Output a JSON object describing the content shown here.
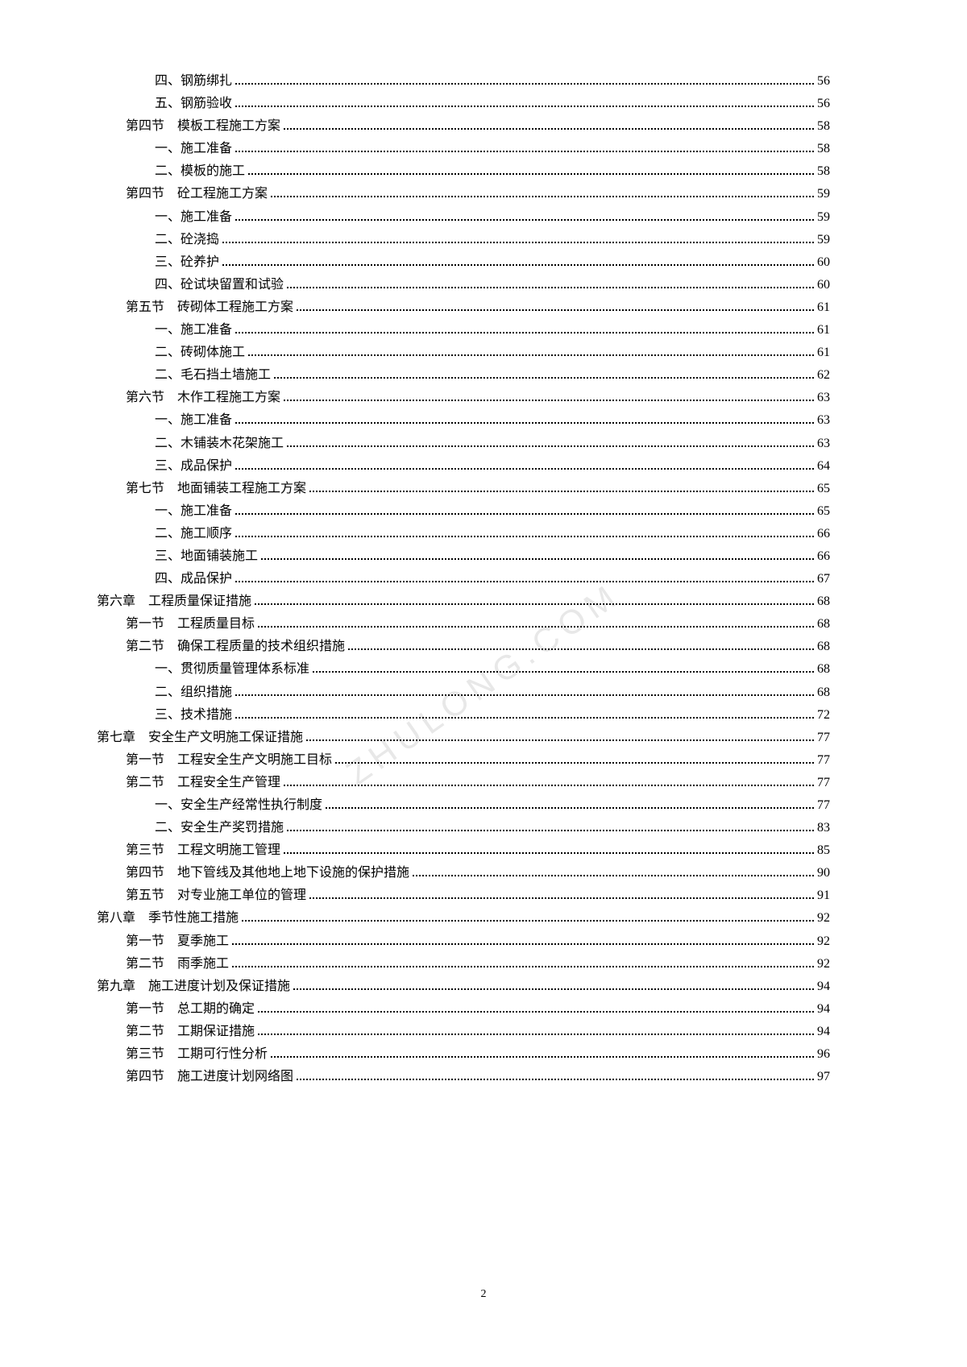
{
  "watermark_text": "ZHULONG.COM",
  "page_number": "2",
  "toc_entries": [
    {
      "indent": 2,
      "label": "四、钢筋绑扎",
      "page": "56"
    },
    {
      "indent": 2,
      "label": "五、钢筋验收",
      "page": "56"
    },
    {
      "indent": 1,
      "label": "第四节　模板工程施工方案",
      "page": "58"
    },
    {
      "indent": 2,
      "label": "一、施工准备",
      "page": "58"
    },
    {
      "indent": 2,
      "label": "二、模板的施工",
      "page": "58"
    },
    {
      "indent": 1,
      "label": "第四节　砼工程施工方案",
      "page": "59"
    },
    {
      "indent": 2,
      "label": "一、施工准备",
      "page": "59"
    },
    {
      "indent": 2,
      "label": "二、砼浇捣",
      "page": "59"
    },
    {
      "indent": 2,
      "label": "三、砼养护",
      "page": "60"
    },
    {
      "indent": 2,
      "label": "四、砼试块留置和试验",
      "page": "60"
    },
    {
      "indent": 1,
      "label": "第五节　砖砌体工程施工方案",
      "page": "61"
    },
    {
      "indent": 2,
      "label": "一、施工准备",
      "page": "61"
    },
    {
      "indent": 2,
      "label": "二、砖砌体施工",
      "page": "61"
    },
    {
      "indent": 2,
      "label": "二、毛石挡土墙施工",
      "page": "62"
    },
    {
      "indent": 1,
      "label": "第六节　木作工程施工方案",
      "page": "63"
    },
    {
      "indent": 2,
      "label": "一、施工准备",
      "page": "63"
    },
    {
      "indent": 2,
      "label": "二、木铺装木花架施工",
      "page": "63"
    },
    {
      "indent": 2,
      "label": "三、成品保护",
      "page": "64"
    },
    {
      "indent": 1,
      "label": "第七节　地面铺装工程施工方案",
      "page": "65"
    },
    {
      "indent": 2,
      "label": "一、施工准备",
      "page": "65"
    },
    {
      "indent": 2,
      "label": "二、施工顺序",
      "page": "66"
    },
    {
      "indent": 2,
      "label": "三、地面铺装施工",
      "page": "66"
    },
    {
      "indent": 2,
      "label": "四、成品保护",
      "page": "67"
    },
    {
      "indent": 0,
      "label": "第六章　工程质量保证措施",
      "page": "68"
    },
    {
      "indent": 1,
      "label": "第一节　工程质量目标",
      "page": "68"
    },
    {
      "indent": 1,
      "label": "第二节　确保工程质量的技术组织措施",
      "page": "68"
    },
    {
      "indent": 2,
      "label": "一、贯彻质量管理体系标准",
      "page": "68"
    },
    {
      "indent": 2,
      "label": "二、组织措施",
      "page": "68"
    },
    {
      "indent": 2,
      "label": "三、技术措施",
      "page": "72"
    },
    {
      "indent": 0,
      "label": "第七章　安全生产文明施工保证措施",
      "page": "77"
    },
    {
      "indent": 1,
      "label": "第一节　工程安全生产文明施工目标",
      "page": "77"
    },
    {
      "indent": 1,
      "label": "第二节　工程安全生产管理",
      "page": "77"
    },
    {
      "indent": 2,
      "label": "一、安全生产经常性执行制度",
      "page": "77"
    },
    {
      "indent": 2,
      "label": "二、安全生产奖罚措施",
      "page": "83"
    },
    {
      "indent": 1,
      "label": "第三节　工程文明施工管理",
      "page": "85"
    },
    {
      "indent": 1,
      "label": "第四节　地下管线及其他地上地下设施的保护措施",
      "page": "90"
    },
    {
      "indent": 1,
      "label": "第五节　对专业施工单位的管理",
      "page": "91"
    },
    {
      "indent": 0,
      "label": "第八章　季节性施工措施",
      "page": "92"
    },
    {
      "indent": 1,
      "label": "第一节　夏季施工",
      "page": "92"
    },
    {
      "indent": 1,
      "label": "第二节　雨季施工",
      "page": "92"
    },
    {
      "indent": 0,
      "label": "第九章　施工进度计划及保证措施",
      "page": "94"
    },
    {
      "indent": 1,
      "label": "第一节　总工期的确定",
      "page": "94"
    },
    {
      "indent": 1,
      "label": "第二节　工期保证措施",
      "page": "94"
    },
    {
      "indent": 1,
      "label": "第三节　工期可行性分析",
      "page": "96"
    },
    {
      "indent": 1,
      "label": "第四节　施工进度计划网络图",
      "page": "97"
    }
  ]
}
